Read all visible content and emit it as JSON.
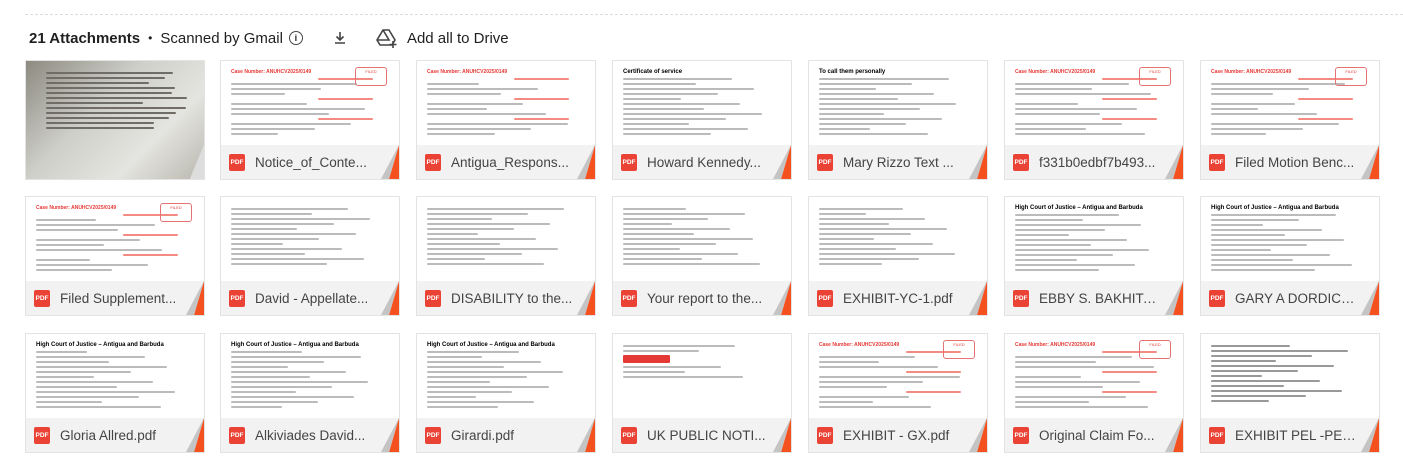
{
  "header": {
    "count": "21 Attachments",
    "scanned": "Scanned by Gmail",
    "add_drive": "Add all to Drive"
  },
  "colors": {
    "pdf": "#ea4335",
    "fold": "#f4511e"
  },
  "attachments": [
    {
      "name": "",
      "preview": "photo"
    },
    {
      "name": "Notice_of_Conte...",
      "preview": "legal",
      "preview_text": "Case Number: ANUHCV2025/0149",
      "stamp": "FILED"
    },
    {
      "name": "Antigua_Respons...",
      "preview": "legal",
      "preview_text": "Case Number: ANUHCV2025/0149"
    },
    {
      "name": "Howard Kennedy...",
      "preview": "form",
      "preview_text": "Certificate of service"
    },
    {
      "name": "Mary Rizzo Text ...",
      "preview": "chat",
      "preview_text": "To call them personally"
    },
    {
      "name": "f331b0edbf7b493...",
      "preview": "legal",
      "preview_text": "Case Number: ANUHCV2025/0149",
      "stamp": "FILED"
    },
    {
      "name": "Filed Motion Benc...",
      "preview": "legal",
      "preview_text": "Case Number: ANUHCV2025/0149",
      "stamp": "FILED"
    },
    {
      "name": "Filed Supplement...",
      "preview": "legal",
      "preview_text": "Case Number: ANUHCV2025/0149",
      "stamp": "FILED"
    },
    {
      "name": "David - Appellate...",
      "preview": "plain"
    },
    {
      "name": "DISABILITY to the...",
      "preview": "email"
    },
    {
      "name": "Your report to the...",
      "preview": "email"
    },
    {
      "name": "EXHIBIT-YC-1.pdf",
      "preview": "plain"
    },
    {
      "name": "EBBY S. BAKHITA...",
      "preview": "court",
      "preview_text": "High Court of Justice – Antigua and Barbuda"
    },
    {
      "name": "GARY A DORDICK...",
      "preview": "court",
      "preview_text": "High Court of Justice – Antigua and Barbuda"
    },
    {
      "name": "Gloria Allred.pdf",
      "preview": "court",
      "preview_text": "High Court of Justice – Antigua and Barbuda"
    },
    {
      "name": "Alkiviades David...",
      "preview": "court",
      "preview_text": "High Court of Justice – Antigua and Barbuda"
    },
    {
      "name": "Girardi.pdf",
      "preview": "court",
      "preview_text": "High Court of Justice – Antigua and Barbuda"
    },
    {
      "name": "UK PUBLIC NOTI...",
      "preview": "news"
    },
    {
      "name": "EXHIBIT - GX.pdf",
      "preview": "legal",
      "preview_text": "Case Number: ANUHCV2025/0149",
      "stamp": "FILED"
    },
    {
      "name": "Original Claim Fo...",
      "preview": "legal",
      "preview_text": "Case Number: ANUHCV2025/0149",
      "stamp": "FILED"
    },
    {
      "name": "EXHIBIT PEL -PEL...",
      "preview": "mono"
    }
  ]
}
